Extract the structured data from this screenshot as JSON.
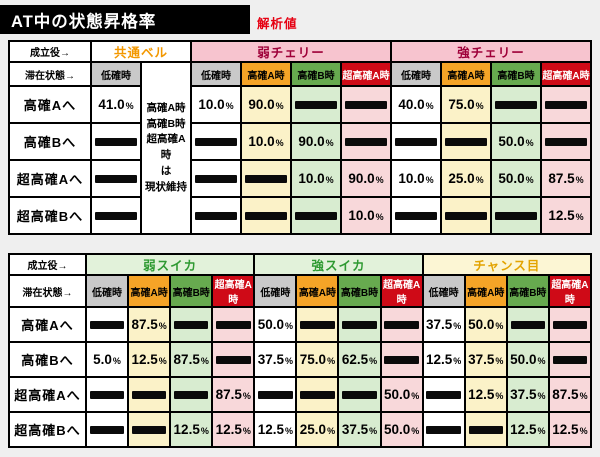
{
  "title": {
    "text": "AT中の状態昇格率",
    "badge": "解析値"
  },
  "header_labels": {
    "role": "成立役→",
    "state": "滞在状態→"
  },
  "state_names": {
    "low": "低確時",
    "hA": "高確A時",
    "hB": "高確B時",
    "sA": "超高確A時"
  },
  "colors": {
    "title_bg": "#000000",
    "title_text": "#ffffff",
    "badge_red": "#e60012",
    "state_low_bg": "#c9c9c9",
    "state_highA_bg": "#f5a427",
    "state_highB_bg": "#67aa4f",
    "state_superA_bg": "#cf0a17",
    "state_superA_text": "#ffffff",
    "cell_highA_bg": "#fbf2c8",
    "cell_highB_bg": "#d8ecd0",
    "cell_superA_bg": "#f8d8da",
    "cherry_bg": "#f7c4cf",
    "cherry_text": "#9e0039",
    "bell_text": "#f39800",
    "suika_bg": "#e2f2da",
    "suika_text": "#2f9a32",
    "chance_bg": "#fcf6d4",
    "chance_text": "#e3a400"
  },
  "tables": [
    {
      "note": [
        "高確A時",
        "高確B時",
        "超高確A時",
        "は",
        "現状維持"
      ],
      "note_col": 1,
      "col_states": [
        "low",
        "note",
        "low",
        "hA",
        "hB",
        "sA",
        "low",
        "hA",
        "hB",
        "sA"
      ],
      "groups": [
        {
          "label": "共通ベル",
          "style": "bell",
          "span": 2
        },
        {
          "label": "弱チェリー",
          "style": "cherry",
          "span": 4
        },
        {
          "label": "強チェリー",
          "style": "cherry",
          "span": 4
        }
      ],
      "rows": [
        {
          "label": "高確Aへ",
          "cells": [
            "41.0%",
            null,
            "10.0%",
            "90.0%",
            null,
            null,
            "40.0%",
            "75.0%",
            null,
            null
          ]
        },
        {
          "label": "高確Bへ",
          "cells": [
            null,
            null,
            null,
            "10.0%",
            "90.0%",
            null,
            null,
            null,
            "50.0%",
            null
          ]
        },
        {
          "label": "超高確Aへ",
          "cells": [
            null,
            null,
            null,
            null,
            "10.0%",
            "90.0%",
            "10.0%",
            "25.0%",
            "50.0%",
            "87.5%"
          ]
        },
        {
          "label": "超高確Bへ",
          "cells": [
            null,
            null,
            null,
            null,
            null,
            "10.0%",
            null,
            null,
            null,
            "12.5%"
          ]
        }
      ]
    },
    {
      "note": null,
      "note_col": -1,
      "col_states": [
        "low",
        "hA",
        "hB",
        "sA",
        "low",
        "hA",
        "hB",
        "sA",
        "low",
        "hA",
        "hB",
        "sA"
      ],
      "groups": [
        {
          "label": "弱スイカ",
          "style": "suika",
          "span": 4
        },
        {
          "label": "強スイカ",
          "style": "suika",
          "span": 4
        },
        {
          "label": "チャンス目",
          "style": "chance",
          "span": 4
        }
      ],
      "rows": [
        {
          "label": "高確Aへ",
          "cells": [
            null,
            "87.5%",
            null,
            null,
            "50.0%",
            null,
            null,
            null,
            "37.5%",
            "50.0%",
            null,
            null
          ]
        },
        {
          "label": "高確Bへ",
          "cells": [
            "5.0%",
            "12.5%",
            "87.5%",
            null,
            "37.5%",
            "75.0%",
            "62.5%",
            null,
            "12.5%",
            "37.5%",
            "50.0%",
            null
          ]
        },
        {
          "label": "超高確Aへ",
          "cells": [
            null,
            null,
            null,
            "87.5%",
            null,
            null,
            null,
            "50.0%",
            null,
            "12.5%",
            "37.5%",
            "87.5%"
          ]
        },
        {
          "label": "超高確Bへ",
          "cells": [
            null,
            null,
            "12.5%",
            "12.5%",
            "12.5%",
            "25.0%",
            "37.5%",
            "50.0%",
            null,
            null,
            "12.5%",
            "12.5%"
          ]
        }
      ]
    }
  ]
}
